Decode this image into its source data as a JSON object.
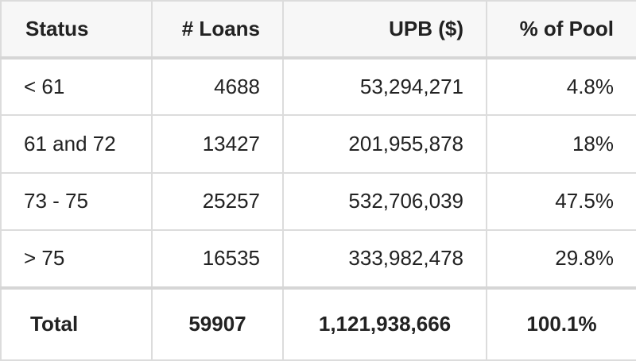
{
  "table": {
    "headers": [
      "Status",
      "# Loans",
      "UPB ($)",
      "% of Pool"
    ],
    "rows": [
      [
        "< 61",
        "4688",
        "53,294,271",
        "4.8%"
      ],
      [
        "61 and 72",
        "13427",
        "201,955,878",
        "18%"
      ],
      [
        "73 - 75",
        "25257",
        "532,706,039",
        "47.5%"
      ],
      [
        "> 75",
        "16535",
        "333,982,478",
        "29.8%"
      ]
    ],
    "total": [
      "Total",
      "59907",
      "1,121,938,666",
      "100.1%"
    ]
  },
  "colors": {
    "header_bg": "#f7f7f7",
    "border": "#dcdcdc",
    "text": "#222222"
  }
}
